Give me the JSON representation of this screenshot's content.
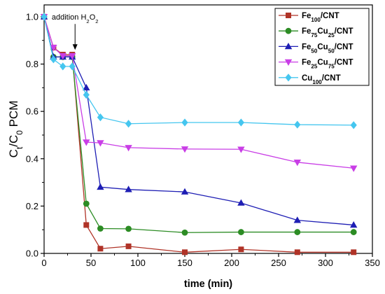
{
  "chart_data": {
    "type": "line",
    "xlabel": "time (min)",
    "ylabel": [
      {
        "text": "C"
      },
      {
        "text": "t",
        "sub": true
      },
      {
        "text": "/C"
      },
      {
        "text": "0",
        "sub": true
      },
      {
        "text": " PCM"
      }
    ],
    "xlim": [
      0,
      350
    ],
    "ylim": [
      0,
      1.05
    ],
    "xticks": [
      "0",
      "50",
      "100",
      "150",
      "200",
      "250",
      "300",
      "350"
    ],
    "yticks": [
      "0.0",
      "0.2",
      "0.4",
      "0.6",
      "0.8",
      "1.0"
    ],
    "grid": false,
    "legend": "top-right",
    "x": [
      0,
      10,
      20,
      30,
      45,
      60,
      90,
      150,
      210,
      270,
      330
    ],
    "series": [
      {
        "name": [
          {
            "text": "Fe"
          },
          {
            "text": "100",
            "sub": true
          },
          {
            "text": "/CNT"
          }
        ],
        "color": "#b03327",
        "marker": "square",
        "values": [
          1.0,
          0.87,
          0.84,
          0.84,
          0.12,
          0.02,
          0.03,
          0.005,
          0.017,
          0.005,
          0.005
        ]
      },
      {
        "name": [
          {
            "text": "Fe"
          },
          {
            "text": "75",
            "sub": true
          },
          {
            "text": "Cu"
          },
          {
            "text": "25",
            "sub": true
          },
          {
            "text": "/CNT"
          }
        ],
        "color": "#2c8c24",
        "marker": "circle",
        "values": [
          1.0,
          0.83,
          0.83,
          0.83,
          0.21,
          0.105,
          0.104,
          0.088,
          0.09,
          0.09,
          0.09
        ]
      },
      {
        "name": [
          {
            "text": "Fe"
          },
          {
            "text": "50",
            "sub": true
          },
          {
            "text": "Cu"
          },
          {
            "text": "50",
            "sub": true
          },
          {
            "text": "/CNT"
          }
        ],
        "color": "#1e1eb4",
        "marker": "triangle-up",
        "values": [
          1.0,
          0.83,
          0.83,
          0.83,
          0.7,
          0.28,
          0.27,
          0.26,
          0.213,
          0.14,
          0.12
        ]
      },
      {
        "name": [
          {
            "text": "Fe"
          },
          {
            "text": "25",
            "sub": true
          },
          {
            "text": "Cu"
          },
          {
            "text": "75",
            "sub": true
          },
          {
            "text": "/CNT"
          }
        ],
        "color": "#c93ee6",
        "marker": "triangle-down",
        "values": [
          1.0,
          0.87,
          0.835,
          0.835,
          0.47,
          0.467,
          0.447,
          0.441,
          0.44,
          0.385,
          0.36
        ]
      },
      {
        "name": [
          {
            "text": "Cu"
          },
          {
            "text": "100",
            "sub": true
          },
          {
            "text": "/CNT"
          }
        ],
        "color": "#45c6ef",
        "marker": "diamond",
        "values": [
          1.0,
          0.82,
          0.79,
          0.79,
          0.67,
          0.575,
          0.548,
          0.553,
          0.553,
          0.544,
          0.542
        ]
      }
    ],
    "annotations": [
      {
        "text": [
          {
            "text": "addition H"
          },
          {
            "text": "2",
            "sub": true
          },
          {
            "text": "O"
          },
          {
            "text": "2",
            "sub": true
          }
        ],
        "x": 33,
        "y": 0.86,
        "arrow": "down"
      }
    ]
  }
}
